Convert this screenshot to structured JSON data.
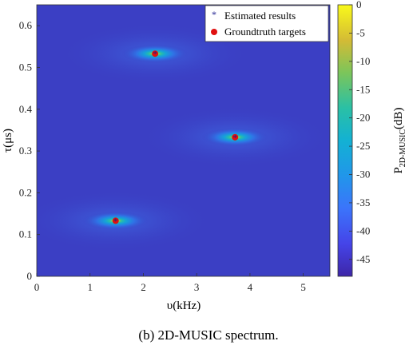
{
  "chart_data": {
    "type": "heatmap",
    "xlabel": "υ(kHz)",
    "ylabel": "τ(μs)",
    "xlim": [
      0,
      5.5
    ],
    "ylim": [
      0,
      0.65
    ],
    "x_ticks": [
      "0",
      "1",
      "2",
      "3",
      "4",
      "5"
    ],
    "x_tick_values": [
      0,
      1,
      2,
      3,
      4,
      5
    ],
    "y_ticks": [
      "0",
      "0.1",
      "0.2",
      "0.3",
      "0.4",
      "0.5",
      "0.6"
    ],
    "y_tick_values": [
      0,
      0.1,
      0.2,
      0.3,
      0.4,
      0.5,
      0.6
    ],
    "colorbar": {
      "label_main": "P",
      "label_sub": "2D-MUSIC",
      "label_unit": "(dB)",
      "range": [
        -48,
        0
      ],
      "ticks": [
        "0",
        "-5",
        "-10",
        "-15",
        "-20",
        "-25",
        "-30",
        "-35",
        "-40",
        "-45"
      ],
      "tick_values": [
        0,
        -5,
        -10,
        -15,
        -20,
        -25,
        -30,
        -35,
        -40,
        -45
      ]
    },
    "peaks": [
      {
        "x": 2.22,
        "y": 0.533,
        "value": 0
      },
      {
        "x": 3.72,
        "y": 0.333,
        "value": 0
      },
      {
        "x": 1.48,
        "y": 0.133,
        "value": 0
      }
    ],
    "series": [
      {
        "name": "Estimated results",
        "marker": "*",
        "color": "#1a1a8c",
        "points": [
          {
            "x": 2.22,
            "y": 0.533
          },
          {
            "x": 3.72,
            "y": 0.333
          },
          {
            "x": 1.48,
            "y": 0.133
          }
        ]
      },
      {
        "name": "Groundtruth targets",
        "marker": "o",
        "color": "#e01010",
        "points": [
          {
            "x": 2.22,
            "y": 0.533
          },
          {
            "x": 3.72,
            "y": 0.333
          },
          {
            "x": 1.48,
            "y": 0.133
          }
        ]
      }
    ],
    "legend_position": "top-right",
    "background_color": "#3b3fc4"
  },
  "caption": "(b)  2D-MUSIC  spectrum."
}
